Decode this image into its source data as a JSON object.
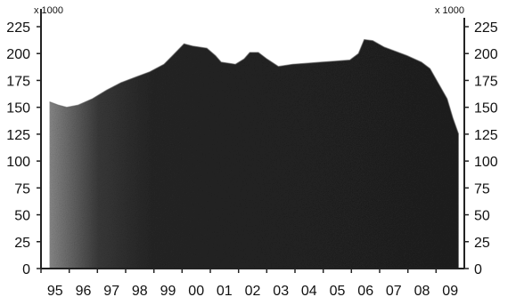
{
  "chart_data": {
    "type": "area",
    "title": "",
    "xlabel": "",
    "ylabel": "",
    "y_multiplier_left": "x 1000",
    "y_multiplier_right": "x 1000",
    "categories": [
      "95",
      "96",
      "97",
      "98",
      "99",
      "00",
      "01",
      "02",
      "03",
      "04",
      "05",
      "06",
      "07",
      "08",
      "09"
    ],
    "series": [
      {
        "x": [
          1995.0,
          1995.3,
          1995.6,
          1996.0,
          1996.5,
          1997.0,
          1997.5,
          1998.0,
          1998.5,
          1999.0,
          1999.3,
          1999.7,
          2000.0,
          2000.5,
          2000.8,
          2001.0,
          2001.5,
          2001.8,
          2002.0,
          2002.3,
          2002.6,
          2003.0,
          2003.5,
          2004.0,
          2004.5,
          2005.0,
          2005.5,
          2005.8,
          2006.0,
          2006.3,
          2006.7,
          2007.0,
          2007.5,
          2008.0,
          2008.3,
          2008.6,
          2008.9,
          2009.1,
          2009.3
        ],
        "values": [
          155,
          152,
          150,
          152,
          158,
          166,
          173,
          178,
          183,
          190,
          198,
          209,
          207,
          205,
          198,
          192,
          190,
          195,
          201,
          201,
          195,
          188,
          190,
          191,
          192,
          193,
          194,
          200,
          213,
          212,
          206,
          203,
          198,
          192,
          186,
          172,
          158,
          140,
          125
        ]
      }
    ],
    "ylim": [
      0,
      225
    ],
    "yticks": [
      0,
      25,
      50,
      75,
      100,
      125,
      150,
      175,
      200,
      225
    ],
    "xlim": [
      1994.7,
      2009.5
    ],
    "grid": false,
    "legend": "none"
  }
}
